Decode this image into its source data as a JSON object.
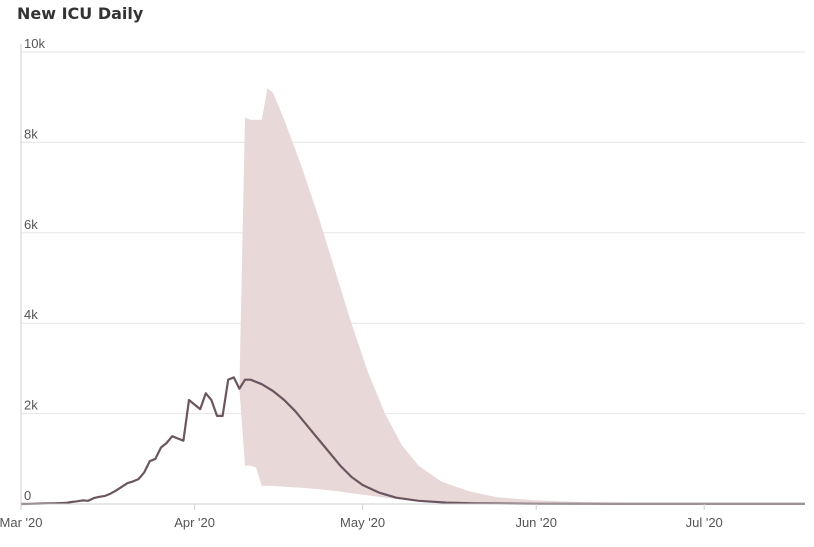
{
  "chart_data": {
    "type": "line",
    "title": "New ICU Daily",
    "y_ticks": [
      {
        "value": 0,
        "label": "0"
      },
      {
        "value": 2000,
        "label": "2k"
      },
      {
        "value": 4000,
        "label": "4k"
      },
      {
        "value": 6000,
        "label": "6k"
      },
      {
        "value": 8000,
        "label": "8k"
      },
      {
        "value": 10000,
        "label": "10k"
      }
    ],
    "x_ticks": [
      {
        "date": "2020-03-01",
        "label": "Mar '20"
      },
      {
        "date": "2020-04-01",
        "label": "Apr '20"
      },
      {
        "date": "2020-05-01",
        "label": "May '20"
      },
      {
        "date": "2020-06-01",
        "label": "Jun '20"
      },
      {
        "date": "2020-07-01",
        "label": "Jul '20"
      }
    ],
    "xlim": [
      "2020-03-01",
      "2020-07-19"
    ],
    "ylim": [
      0,
      10000
    ],
    "grid": true,
    "colors": {
      "line": "#6b5660",
      "band": "#e8d8d8",
      "grid": "#e6e6e6",
      "axis": "#cfcfcf"
    },
    "series": [
      {
        "kind": "line",
        "points": [
          [
            "2020-03-01",
            0
          ],
          [
            "2020-03-03",
            5
          ],
          [
            "2020-03-05",
            10
          ],
          [
            "2020-03-07",
            15
          ],
          [
            "2020-03-09",
            25
          ],
          [
            "2020-03-10",
            45
          ],
          [
            "2020-03-11",
            60
          ],
          [
            "2020-03-12",
            80
          ],
          [
            "2020-03-13",
            70
          ],
          [
            "2020-03-14",
            130
          ],
          [
            "2020-03-15",
            160
          ],
          [
            "2020-03-16",
            180
          ],
          [
            "2020-03-17",
            230
          ],
          [
            "2020-03-18",
            300
          ],
          [
            "2020-03-19",
            380
          ],
          [
            "2020-03-20",
            460
          ],
          [
            "2020-03-21",
            500
          ],
          [
            "2020-03-22",
            550
          ],
          [
            "2020-03-23",
            700
          ],
          [
            "2020-03-24",
            950
          ],
          [
            "2020-03-25",
            1000
          ],
          [
            "2020-03-26",
            1250
          ],
          [
            "2020-03-27",
            1350
          ],
          [
            "2020-03-28",
            1500
          ],
          [
            "2020-03-29",
            1450
          ],
          [
            "2020-03-30",
            1400
          ],
          [
            "2020-03-31",
            2300
          ],
          [
            "2020-04-01",
            2200
          ],
          [
            "2020-04-02",
            2100
          ],
          [
            "2020-04-03",
            2450
          ],
          [
            "2020-04-04",
            2300
          ],
          [
            "2020-04-05",
            1950
          ],
          [
            "2020-04-06",
            1950
          ],
          [
            "2020-04-07",
            2750
          ],
          [
            "2020-04-08",
            2800
          ],
          [
            "2020-04-09",
            2550
          ],
          [
            "2020-04-10",
            2750
          ],
          [
            "2020-04-11",
            2750
          ],
          [
            "2020-04-13",
            2650
          ],
          [
            "2020-04-15",
            2500
          ],
          [
            "2020-04-17",
            2300
          ],
          [
            "2020-04-19",
            2050
          ],
          [
            "2020-04-21",
            1750
          ],
          [
            "2020-04-23",
            1450
          ],
          [
            "2020-04-25",
            1150
          ],
          [
            "2020-04-27",
            850
          ],
          [
            "2020-04-29",
            600
          ],
          [
            "2020-05-01",
            420
          ],
          [
            "2020-05-04",
            250
          ],
          [
            "2020-05-07",
            140
          ],
          [
            "2020-05-11",
            70
          ],
          [
            "2020-05-16",
            30
          ],
          [
            "2020-05-21",
            15
          ],
          [
            "2020-06-01",
            5
          ],
          [
            "2020-06-15",
            3
          ],
          [
            "2020-07-01",
            2
          ],
          [
            "2020-07-19",
            2
          ]
        ]
      },
      {
        "kind": "band",
        "points": [
          [
            "2020-04-09",
            2550,
            2550
          ],
          [
            "2020-04-10",
            850,
            8550
          ],
          [
            "2020-04-11",
            850,
            8500
          ],
          [
            "2020-04-12",
            800,
            8500
          ],
          [
            "2020-04-13",
            400,
            8500
          ],
          [
            "2020-04-14",
            400,
            9200
          ],
          [
            "2020-04-15",
            400,
            9100
          ],
          [
            "2020-04-17",
            380,
            8500
          ],
          [
            "2020-04-20",
            360,
            7500
          ],
          [
            "2020-04-23",
            330,
            6400
          ],
          [
            "2020-04-26",
            290,
            5200
          ],
          [
            "2020-04-29",
            240,
            4000
          ],
          [
            "2020-05-02",
            190,
            2900
          ],
          [
            "2020-05-05",
            140,
            2000
          ],
          [
            "2020-05-08",
            100,
            1300
          ],
          [
            "2020-05-11",
            70,
            850
          ],
          [
            "2020-05-15",
            45,
            500
          ],
          [
            "2020-05-20",
            25,
            280
          ],
          [
            "2020-05-25",
            15,
            150
          ],
          [
            "2020-06-01",
            8,
            80
          ],
          [
            "2020-06-10",
            5,
            40
          ],
          [
            "2020-06-20",
            3,
            20
          ],
          [
            "2020-07-01",
            2,
            10
          ],
          [
            "2020-07-19",
            2,
            5
          ]
        ]
      }
    ]
  }
}
